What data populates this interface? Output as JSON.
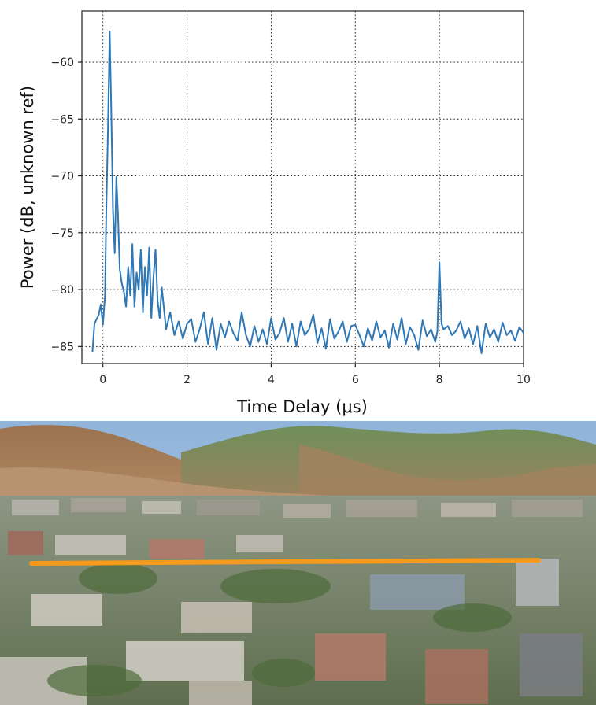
{
  "chart_data": {
    "type": "line",
    "title": "",
    "xlabel": "Time Delay (μs)",
    "ylabel": "Power (dB, unknown ref)",
    "xlim": [
      -0.5,
      10
    ],
    "ylim": [
      -86.5,
      -55.5
    ],
    "xticks": [
      0,
      2,
      4,
      6,
      8,
      10
    ],
    "yticks": [
      -60,
      -65,
      -70,
      -75,
      -80,
      -85
    ],
    "xtick_labels": [
      "0",
      "2",
      "4",
      "6",
      "8",
      "10"
    ],
    "ytick_labels": [
      "−60",
      "−65",
      "−70",
      "−75",
      "−80",
      "−85"
    ],
    "grid": true,
    "grid_style": "dotted",
    "legend": "none",
    "line_color": "#2f78b5",
    "series": [
      {
        "x": [
          -0.25,
          -0.2,
          -0.1,
          -0.05,
          0.0,
          0.05,
          0.08,
          0.12,
          0.16,
          0.2,
          0.24,
          0.28,
          0.32,
          0.36,
          0.4,
          0.45,
          0.5,
          0.55,
          0.6,
          0.65,
          0.7,
          0.75,
          0.8,
          0.85,
          0.9,
          0.95,
          1.0,
          1.05,
          1.1,
          1.15,
          1.2,
          1.25,
          1.3,
          1.35,
          1.4,
          1.5,
          1.6,
          1.7,
          1.8,
          1.9,
          2.0,
          2.1,
          2.2,
          2.3,
          2.4,
          2.5,
          2.6,
          2.7,
          2.8,
          2.9,
          3.0,
          3.1,
          3.2,
          3.3,
          3.4,
          3.5,
          3.6,
          3.7,
          3.8,
          3.9,
          4.0,
          4.1,
          4.2,
          4.3,
          4.4,
          4.5,
          4.6,
          4.7,
          4.8,
          4.9,
          5.0,
          5.1,
          5.2,
          5.3,
          5.4,
          5.5,
          5.6,
          5.7,
          5.8,
          5.9,
          6.0,
          6.1,
          6.2,
          6.3,
          6.4,
          6.5,
          6.6,
          6.7,
          6.8,
          6.9,
          7.0,
          7.1,
          7.2,
          7.3,
          7.4,
          7.5,
          7.6,
          7.7,
          7.8,
          7.9,
          7.95,
          8.0,
          8.05,
          8.1,
          8.2,
          8.3,
          8.4,
          8.5,
          8.6,
          8.7,
          8.8,
          8.9,
          9.0,
          9.1,
          9.2,
          9.3,
          9.4,
          9.5,
          9.6,
          9.7,
          9.8,
          9.9,
          10.0
        ],
        "y": [
          -85.5,
          -83.0,
          -82.2,
          -81.3,
          -83.1,
          -80.5,
          -73.0,
          -66.0,
          -57.3,
          -64.5,
          -73.0,
          -76.8,
          -70.1,
          -73.5,
          -78.2,
          -79.5,
          -80.2,
          -81.5,
          -78.0,
          -80.5,
          -76.0,
          -81.5,
          -78.5,
          -80.0,
          -76.5,
          -82.0,
          -78.0,
          -80.5,
          -76.3,
          -82.5,
          -79.0,
          -76.5,
          -81.0,
          -82.5,
          -79.8,
          -83.5,
          -82.0,
          -84.0,
          -82.8,
          -84.3,
          -83.0,
          -82.6,
          -84.6,
          -83.5,
          -82.0,
          -84.8,
          -82.5,
          -85.3,
          -83.0,
          -84.2,
          -82.8,
          -83.8,
          -84.5,
          -82.0,
          -84.0,
          -85.0,
          -83.2,
          -84.6,
          -83.5,
          -84.8,
          -82.5,
          -84.4,
          -83.8,
          -82.5,
          -84.6,
          -83.0,
          -85.0,
          -82.8,
          -84.0,
          -83.5,
          -82.2,
          -84.7,
          -83.4,
          -85.2,
          -82.6,
          -84.3,
          -83.7,
          -82.8,
          -84.6,
          -83.2,
          -83.1,
          -84.0,
          -85.0,
          -83.4,
          -84.5,
          -82.8,
          -84.2,
          -83.6,
          -85.1,
          -83.0,
          -84.4,
          -82.5,
          -84.8,
          -83.3,
          -84.0,
          -85.3,
          -82.7,
          -84.1,
          -83.5,
          -84.6,
          -83.7,
          -77.6,
          -83.0,
          -83.5,
          -83.2,
          -84.0,
          -83.6,
          -82.8,
          -84.3,
          -83.4,
          -84.8,
          -83.2,
          -85.6,
          -83.0,
          -84.2,
          -83.5,
          -84.6,
          -82.9,
          -84.0,
          -83.6,
          -84.5,
          -83.3,
          -83.8
        ]
      }
    ]
  },
  "photo": {
    "description_icon": "aerial-campus-icon",
    "path_line_color": "#f59a1c"
  }
}
